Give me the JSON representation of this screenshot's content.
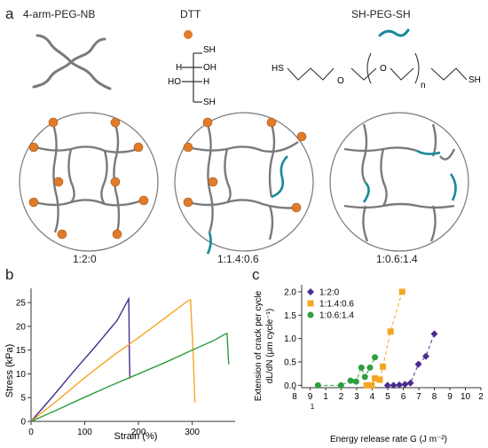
{
  "panel_a": {
    "letter": "a",
    "molecules": {
      "peg_nb": "4-arm-PEG-NB",
      "dtt": "DTT",
      "sh_peg_sh": "SH-PEG-SH"
    },
    "dtt_structure": {
      "sh_top": "SH",
      "h1": "H",
      "oh1": "OH",
      "ho2": "HO",
      "h2": "H",
      "sh_bottom": "SH"
    },
    "peg_structure": {
      "sh_left": "HS",
      "o1": "O",
      "o2": "O",
      "n": "n",
      "sh_right": "SH"
    },
    "ratios": [
      "1:2:0",
      "1:1.4:0.6",
      "1:0.6:1.4"
    ],
    "colors": {
      "nb": "#e07b2a",
      "peg": "#168a99",
      "network": "#7a7a7a"
    }
  },
  "panel_b": {
    "letter": "b"
  },
  "panel_c": {
    "letter": "c"
  },
  "chart_data": [
    {
      "type": "line",
      "xlabel": "Strain (%)",
      "ylabel": "Stress (kPa)",
      "xlim": [
        0,
        380
      ],
      "ylim": [
        0,
        28
      ],
      "xticks": [
        "0",
        "100",
        "200",
        "300"
      ],
      "yticks": [
        "0",
        "5",
        "10",
        "15",
        "20",
        "25"
      ],
      "series": [
        {
          "color": "#4b2c8f",
          "x": [
            0,
            40,
            80,
            120,
            160,
            182,
            183,
            184
          ],
          "y": [
            0,
            5.2,
            10.6,
            15.8,
            21.2,
            25.8,
            15,
            9
          ]
        },
        {
          "color": "#f5a623",
          "x": [
            0,
            50,
            100,
            150,
            200,
            250,
            290,
            297,
            302,
            305
          ],
          "y": [
            0,
            4.5,
            9.2,
            13.6,
            17.6,
            21.8,
            25.2,
            25.6,
            14,
            4
          ]
        },
        {
          "color": "#2e9e3e",
          "x": [
            0,
            50,
            100,
            150,
            200,
            250,
            300,
            340,
            362,
            365,
            368
          ],
          "y": [
            0,
            2.5,
            5.1,
            7.6,
            10,
            12.4,
            15,
            17,
            18.4,
            18.5,
            12
          ]
        }
      ]
    },
    {
      "type": "scatter",
      "xlabel": "Energy release rate G (J m⁻²)",
      "ylabel": "Extension of crack per cycle",
      "ylabel2": "dL/dN (μm cycle⁻¹)",
      "xscale": "log",
      "xlim": [
        7.5,
        20
      ],
      "ylim": [
        -0.05,
        2.15
      ],
      "xtick_labels": [
        "8",
        "9",
        "1",
        "2",
        "3",
        "4",
        "5",
        "6",
        "7",
        "8",
        "9",
        "10",
        "2"
      ],
      "xtick_labels_small": [
        "1"
      ],
      "yticks": [
        "0.0",
        "0.5",
        "1.0",
        "1.5",
        "2.0"
      ],
      "legend": [
        "1:2:0",
        "1:1.4:0.6",
        "1:0.6:1.4"
      ],
      "series": [
        {
          "name": "1:2:0",
          "color": "#4b2c8f",
          "marker": "diamond",
          "x": [
            12.0,
            12.4,
            12.8,
            13.2,
            13.6,
            14.2,
            14.8,
            15.5
          ],
          "y": [
            0.0,
            0.0,
            0.01,
            0.02,
            0.05,
            0.45,
            0.62,
            1.1
          ]
        },
        {
          "name": "1:1.4:0.6",
          "color": "#f5a623",
          "marker": "square",
          "x": [
            10.7,
            11.0,
            11.2,
            11.5,
            11.7,
            12.2,
            13.0
          ],
          "y": [
            0.0,
            0.0,
            0.15,
            0.12,
            0.4,
            1.15,
            2.0
          ]
        },
        {
          "name": "1:0.6:1.4",
          "color": "#2e9e3e",
          "marker": "circle",
          "x": [
            8.2,
            9.3,
            9.8,
            10.1,
            10.4,
            10.6,
            10.9,
            11.2
          ],
          "y": [
            0.0,
            0.0,
            0.1,
            0.08,
            0.38,
            0.18,
            0.38,
            0.6
          ]
        }
      ]
    }
  ]
}
